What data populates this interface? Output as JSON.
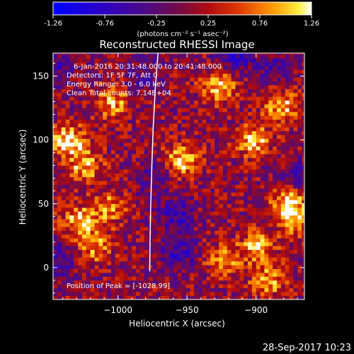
{
  "chart_data": {
    "type": "heatmap",
    "title": "Reconstructed RHESSI Image",
    "xlabel": "Heliocentric X (arcsec)",
    "ylabel": "Heliocentric Y (arcsec)",
    "xlim": [
      -1047,
      -865
    ],
    "ylim": [
      -25,
      168
    ],
    "x_ticks": [
      {
        "value": -1000,
        "label": "−1000"
      },
      {
        "value": -950,
        "label": "−950"
      },
      {
        "value": -900,
        "label": "−900"
      }
    ],
    "y_ticks": [
      {
        "value": 0,
        "label": "0"
      },
      {
        "value": 50,
        "label": "50"
      },
      {
        "value": 100,
        "label": "100"
      },
      {
        "value": 150,
        "label": "150"
      }
    ],
    "colorbar": {
      "min": -1.26,
      "max": 1.26,
      "ticks": [
        "-1.26",
        "-0.76",
        "-0.25",
        "0.25",
        "0.76",
        "1.26"
      ],
      "unit_label": "(photons cm⁻² s⁻¹ asec⁻²)"
    },
    "annotations": [
      "6-Jan-2016 20:31:48.000 to 20:41:48.000",
      "Detectors: 1F 5F 7F, Att 0",
      "Energy Range: 3.0 - 6.0 keV",
      "Clean     Total counts: 7.14E+04"
    ],
    "peak_label": "Position of Peak = [-1028,99]",
    "peak_position": [
      -1028,
      99
    ],
    "hot_spots": [
      {
        "x": -1038,
        "y": 98,
        "value": 1.1
      },
      {
        "x": -1025,
        "y": 78,
        "value": 0.9
      },
      {
        "x": -1005,
        "y": 128,
        "value": 0.85
      },
      {
        "x": -1030,
        "y": 35,
        "value": 0.9
      },
      {
        "x": -1018,
        "y": 15,
        "value": 0.8
      },
      {
        "x": -955,
        "y": 83,
        "value": 1.0
      },
      {
        "x": -928,
        "y": 140,
        "value": 0.9
      },
      {
        "x": -903,
        "y": 98,
        "value": 0.95
      },
      {
        "x": -883,
        "y": 125,
        "value": 1.0
      },
      {
        "x": -878,
        "y": 50,
        "value": 0.95
      },
      {
        "x": -873,
        "y": 35,
        "value": 0.85
      },
      {
        "x": -900,
        "y": 15,
        "value": 0.9
      },
      {
        "x": -893,
        "y": -12,
        "value": 0.85
      },
      {
        "x": -925,
        "y": 5,
        "value": 0.75
      },
      {
        "x": -1008,
        "y": 45,
        "value": 0.8
      }
    ],
    "cold_spots": [
      {
        "x": -960,
        "y": 40,
        "value": -0.7
      },
      {
        "x": -958,
        "y": 10,
        "value": -0.6
      },
      {
        "x": -915,
        "y": 165,
        "value": -0.7
      },
      {
        "x": -888,
        "y": 155,
        "value": -0.5
      },
      {
        "x": -985,
        "y": 150,
        "value": -0.4
      },
      {
        "x": -1043,
        "y": 155,
        "value": -0.5
      },
      {
        "x": -1045,
        "y": 5,
        "value": -0.6
      },
      {
        "x": -975,
        "y": 70,
        "value": -0.5
      },
      {
        "x": -870,
        "y": 70,
        "value": -0.5
      }
    ],
    "limb_curve": [
      {
        "x": -971,
        "y": 168
      },
      {
        "x": -973,
        "y": 140
      },
      {
        "x": -974.5,
        "y": 110
      },
      {
        "x": -975.5,
        "y": 80
      },
      {
        "x": -976.3,
        "y": 50
      },
      {
        "x": -976.8,
        "y": 20
      },
      {
        "x": -977,
        "y": -3
      }
    ]
  },
  "footer": {
    "timestamp": "28-Sep-2017 10:23"
  }
}
